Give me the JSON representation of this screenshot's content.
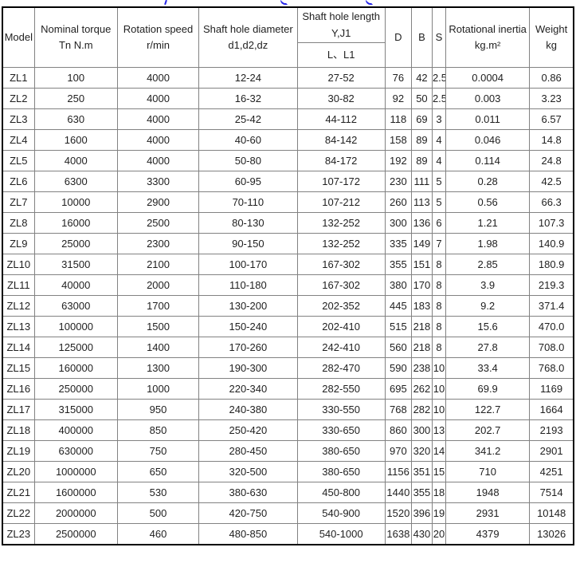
{
  "page": {
    "clipped_title_color": "#2323e8"
  },
  "colors": {
    "outer_border": "#000000",
    "inner_border": "#828282",
    "text": "#1f1f1f",
    "background": "#ffffff"
  },
  "table": {
    "header": {
      "model": "Model",
      "nominal_torque": [
        "Nominal torque",
        "Tn N.m"
      ],
      "rotation_speed": [
        "Rotation speed",
        "r/min"
      ],
      "shaft_hole_diameter": [
        "Shaft hole diameter",
        "d1,d2,dz"
      ],
      "shaft_hole_length": [
        "Shaft hole length",
        "Y,J1"
      ],
      "shaft_hole_length_sub": "L、L1",
      "d": "D",
      "b": "B",
      "s": "S",
      "rotational_inertia": [
        "Rotational inertia",
        "kg.m²"
      ],
      "weight": [
        "Weight",
        "kg"
      ]
    },
    "rows": [
      [
        "ZL1",
        "100",
        "4000",
        "12-24",
        "27-52",
        "76",
        "42",
        "2.5",
        "0.0004",
        "0.86"
      ],
      [
        "ZL2",
        "250",
        "4000",
        "16-32",
        "30-82",
        "92",
        "50",
        "2.5",
        "0.003",
        "3.23"
      ],
      [
        "ZL3",
        "630",
        "4000",
        "25-42",
        "44-112",
        "118",
        "69",
        "3",
        "0.011",
        "6.57"
      ],
      [
        "ZL4",
        "1600",
        "4000",
        "40-60",
        "84-142",
        "158",
        "89",
        "4",
        "0.046",
        "14.8"
      ],
      [
        "ZL5",
        "4000",
        "4000",
        "50-80",
        "84-172",
        "192",
        "89",
        "4",
        "0.114",
        "24.8"
      ],
      [
        "ZL6",
        "6300",
        "3300",
        "60-95",
        "107-172",
        "230",
        "111",
        "5",
        "0.28",
        "42.5"
      ],
      [
        "ZL7",
        "10000",
        "2900",
        "70-110",
        "107-212",
        "260",
        "113",
        "5",
        "0.56",
        "66.3"
      ],
      [
        "ZL8",
        "16000",
        "2500",
        "80-130",
        "132-252",
        "300",
        "136",
        "6",
        "1.21",
        "107.3"
      ],
      [
        "ZL9",
        "25000",
        "2300",
        "90-150",
        "132-252",
        "335",
        "149",
        "7",
        "1.98",
        "140.9"
      ],
      [
        "ZL10",
        "31500",
        "2100",
        "100-170",
        "167-302",
        "355",
        "151",
        "8",
        "2.85",
        "180.9"
      ],
      [
        "ZL11",
        "40000",
        "2000",
        "110-180",
        "167-302",
        "380",
        "170",
        "8",
        "3.9",
        "219.3"
      ],
      [
        "ZL12",
        "63000",
        "1700",
        "130-200",
        "202-352",
        "445",
        "183",
        "8",
        "9.2",
        "371.4"
      ],
      [
        "ZL13",
        "100000",
        "1500",
        "150-240",
        "202-410",
        "515",
        "218",
        "8",
        "15.6",
        "470.0"
      ],
      [
        "ZL14",
        "125000",
        "1400",
        "170-260",
        "242-410",
        "560",
        "218",
        "8",
        "27.8",
        "708.0"
      ],
      [
        "ZL15",
        "160000",
        "1300",
        "190-300",
        "282-470",
        "590",
        "238",
        "10",
        "33.4",
        "768.0"
      ],
      [
        "ZL16",
        "250000",
        "1000",
        "220-340",
        "282-550",
        "695",
        "262",
        "10",
        "69.9",
        "1169"
      ],
      [
        "ZL17",
        "315000",
        "950",
        "240-380",
        "330-550",
        "768",
        "282",
        "10",
        "122.7",
        "1664"
      ],
      [
        "ZL18",
        "400000",
        "850",
        "250-420",
        "330-650",
        "860",
        "300",
        "13",
        "202.7",
        "2193"
      ],
      [
        "ZL19",
        "630000",
        "750",
        "280-450",
        "380-650",
        "970",
        "320",
        "14",
        "341.2",
        "2901"
      ],
      [
        "ZL20",
        "1000000",
        "650",
        "320-500",
        "380-650",
        "1156",
        "351",
        "15",
        "710",
        "4251"
      ],
      [
        "ZL21",
        "1600000",
        "530",
        "380-630",
        "450-800",
        "1440",
        "355",
        "18",
        "1948",
        "7514"
      ],
      [
        "ZL22",
        "2000000",
        "500",
        "420-750",
        "540-900",
        "1520",
        "396",
        "19",
        "2931",
        "10148"
      ],
      [
        "ZL23",
        "2500000",
        "460",
        "480-850",
        "540-1000",
        "1638",
        "430",
        "20",
        "4379",
        "13026"
      ]
    ]
  }
}
